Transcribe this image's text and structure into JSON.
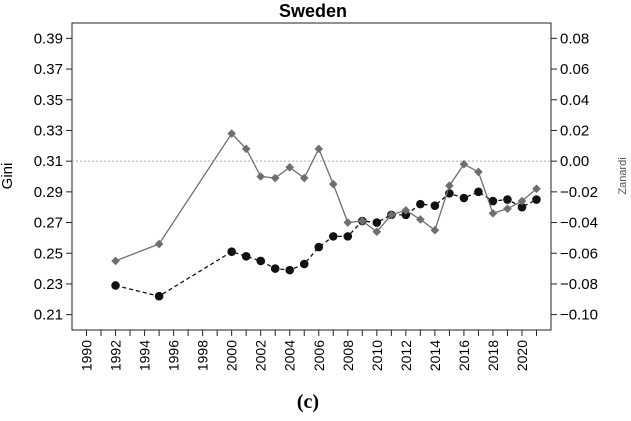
{
  "chart_data": {
    "type": "line",
    "title": "Sweden",
    "ylabel": "Gini",
    "y2label": "Zanardi",
    "caption": "(c)",
    "xlim": [
      1989,
      2022
    ],
    "ylim": [
      0.2,
      0.4
    ],
    "y2lim": [
      -0.11,
      0.09
    ],
    "xticks": [
      1990,
      1991,
      1992,
      1993,
      1994,
      1995,
      1996,
      1997,
      1998,
      1999,
      2000,
      2001,
      2002,
      2003,
      2004,
      2005,
      2006,
      2007,
      2008,
      2009,
      2010,
      2011,
      2012,
      2013,
      2014,
      2015,
      2016,
      2017,
      2018,
      2019,
      2020,
      2021
    ],
    "xtick_labels": [
      "1990",
      "1992",
      "1994",
      "1996",
      "1998",
      "2000",
      "2002",
      "2004",
      "2006",
      "2008",
      "2010",
      "2012",
      "2014",
      "2016",
      "2018",
      "2020"
    ],
    "yticks": [
      "0.21",
      "0.23",
      "0.25",
      "0.27",
      "0.29",
      "0.31",
      "0.33",
      "0.35",
      "0.37",
      "0.39"
    ],
    "y2ticks": [
      "−0.10",
      "−0.08",
      "−0.06",
      "−0.04",
      "−0.02",
      "0.00",
      "0.02",
      "0.04",
      "0.06",
      "0.08"
    ],
    "reference_line_y2": 0.0,
    "grid": false,
    "colors": {
      "gini": "#111111",
      "zanardi": "#6e6e6e",
      "reference": "#aaaaaa",
      "axis": "#222222"
    },
    "series": [
      {
        "axis": "left",
        "marker": "circle",
        "line_style": "dashed",
        "x": [
          1992,
          1995,
          2000,
          2001,
          2002,
          2003,
          2004,
          2005,
          2006,
          2007,
          2008,
          2009,
          2010,
          2011,
          2012,
          2013,
          2014,
          2015,
          2016,
          2017,
          2018,
          2019,
          2020,
          2021
        ],
        "y": [
          0.229,
          0.222,
          0.251,
          0.248,
          0.245,
          0.24,
          0.239,
          0.243,
          0.254,
          0.261,
          0.261,
          0.271,
          0.27,
          0.275,
          0.275,
          0.282,
          0.281,
          0.289,
          0.286,
          0.29,
          0.284,
          0.285,
          0.28,
          0.285
        ]
      },
      {
        "axis": "right",
        "marker": "diamond",
        "line_style": "solid",
        "x": [
          1992,
          1995,
          2000,
          2001,
          2002,
          2003,
          2004,
          2005,
          2006,
          2007,
          2008,
          2009,
          2010,
          2011,
          2012,
          2013,
          2014,
          2015,
          2016,
          2017,
          2018,
          2019,
          2020,
          2021
        ],
        "y": [
          -0.065,
          -0.054,
          0.018,
          0.008,
          -0.01,
          -0.011,
          -0.004,
          -0.011,
          0.008,
          -0.015,
          -0.04,
          -0.039,
          -0.046,
          -0.035,
          -0.032,
          -0.038,
          -0.045,
          -0.016,
          -0.002,
          -0.007,
          -0.034,
          -0.031,
          -0.026,
          -0.018
        ]
      }
    ]
  }
}
